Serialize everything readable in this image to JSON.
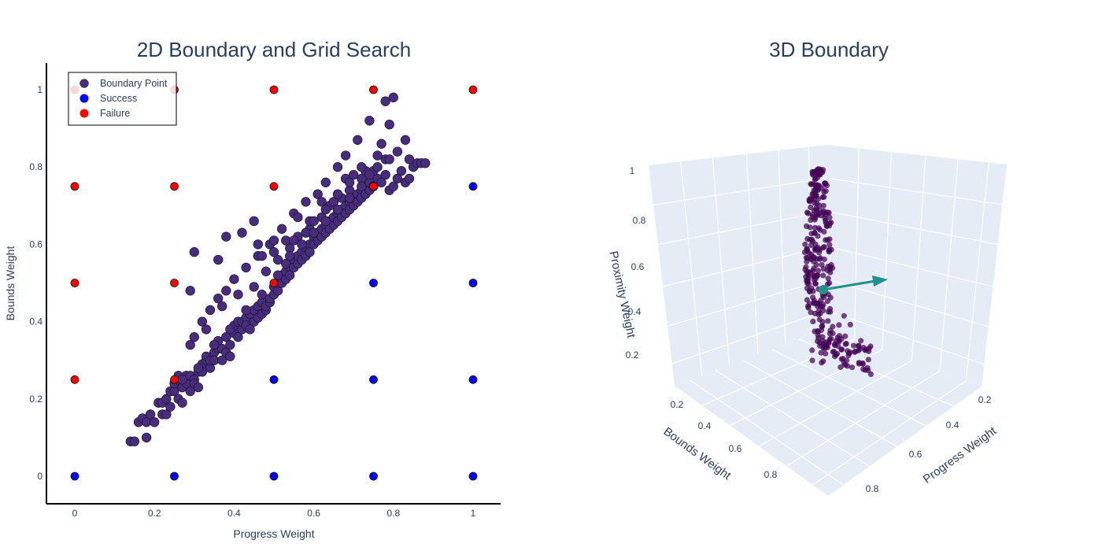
{
  "chart_data": [
    {
      "type": "scatter",
      "title": "2D Boundary and Grid Search",
      "xlabel": "Progress Weight",
      "ylabel": "Bounds Weight",
      "xlim": [
        -0.07,
        1.07
      ],
      "ylim": [
        -0.07,
        1.07
      ],
      "xticks": [
        "0",
        "0.2",
        "0.4",
        "0.6",
        "0.8",
        "1"
      ],
      "yticks": [
        "0",
        "0.2",
        "0.4",
        "0.6",
        "0.8",
        "1"
      ],
      "grid": false,
      "legend_position": "top-left",
      "legend": [
        {
          "name": "Boundary Point",
          "color": "#472d7b"
        },
        {
          "name": "Success",
          "color": "#0000ff"
        },
        {
          "name": "Failure",
          "color": "#ff0000"
        }
      ],
      "series": [
        {
          "name": "Boundary Point",
          "color": "#472d7b",
          "points": [
            [
              0.14,
              0.09
            ],
            [
              0.15,
              0.09
            ],
            [
              0.16,
              0.14
            ],
            [
              0.17,
              0.15
            ],
            [
              0.18,
              0.1
            ],
            [
              0.18,
              0.14
            ],
            [
              0.19,
              0.16
            ],
            [
              0.2,
              0.14
            ],
            [
              0.21,
              0.19
            ],
            [
              0.22,
              0.16
            ],
            [
              0.22,
              0.19
            ],
            [
              0.23,
              0.2
            ],
            [
              0.23,
              0.16
            ],
            [
              0.24,
              0.22
            ],
            [
              0.24,
              0.18
            ],
            [
              0.25,
              0.22
            ],
            [
              0.25,
              0.24
            ],
            [
              0.26,
              0.2
            ],
            [
              0.26,
              0.25
            ],
            [
              0.27,
              0.23
            ],
            [
              0.27,
              0.19
            ],
            [
              0.28,
              0.24
            ],
            [
              0.28,
              0.26
            ],
            [
              0.29,
              0.22
            ],
            [
              0.29,
              0.26
            ],
            [
              0.3,
              0.25
            ],
            [
              0.3,
              0.24
            ],
            [
              0.31,
              0.27
            ],
            [
              0.31,
              0.23
            ],
            [
              0.32,
              0.29
            ],
            [
              0.32,
              0.27
            ],
            [
              0.33,
              0.3
            ],
            [
              0.33,
              0.31
            ],
            [
              0.34,
              0.28
            ],
            [
              0.34,
              0.3
            ],
            [
              0.35,
              0.32
            ],
            [
              0.35,
              0.3
            ],
            [
              0.36,
              0.33
            ],
            [
              0.36,
              0.35
            ],
            [
              0.37,
              0.3
            ],
            [
              0.37,
              0.33
            ],
            [
              0.38,
              0.32
            ],
            [
              0.38,
              0.36
            ],
            [
              0.39,
              0.34
            ],
            [
              0.39,
              0.31
            ],
            [
              0.4,
              0.37
            ],
            [
              0.4,
              0.39
            ],
            [
              0.41,
              0.36
            ],
            [
              0.41,
              0.4
            ],
            [
              0.42,
              0.38
            ],
            [
              0.42,
              0.4
            ],
            [
              0.43,
              0.41
            ],
            [
              0.43,
              0.39
            ],
            [
              0.44,
              0.42
            ],
            [
              0.44,
              0.38
            ],
            [
              0.45,
              0.4
            ],
            [
              0.45,
              0.43
            ],
            [
              0.46,
              0.41
            ],
            [
              0.46,
              0.44
            ],
            [
              0.47,
              0.42
            ],
            [
              0.47,
              0.45
            ],
            [
              0.48,
              0.43
            ],
            [
              0.48,
              0.44
            ],
            [
              0.49,
              0.45
            ],
            [
              0.49,
              0.46
            ],
            [
              0.5,
              0.47
            ],
            [
              0.5,
              0.49
            ],
            [
              0.51,
              0.48
            ],
            [
              0.51,
              0.5
            ],
            [
              0.52,
              0.5
            ],
            [
              0.52,
              0.52
            ],
            [
              0.53,
              0.51
            ],
            [
              0.53,
              0.53
            ],
            [
              0.54,
              0.54
            ],
            [
              0.54,
              0.52
            ],
            [
              0.55,
              0.56
            ],
            [
              0.55,
              0.54
            ],
            [
              0.56,
              0.55
            ],
            [
              0.56,
              0.57
            ],
            [
              0.57,
              0.58
            ],
            [
              0.57,
              0.56
            ],
            [
              0.58,
              0.59
            ],
            [
              0.58,
              0.57
            ],
            [
              0.59,
              0.6
            ],
            [
              0.59,
              0.58
            ],
            [
              0.6,
              0.62
            ],
            [
              0.6,
              0.6
            ],
            [
              0.61,
              0.61
            ],
            [
              0.61,
              0.63
            ],
            [
              0.62,
              0.62
            ],
            [
              0.62,
              0.64
            ],
            [
              0.63,
              0.65
            ],
            [
              0.63,
              0.63
            ],
            [
              0.64,
              0.66
            ],
            [
              0.64,
              0.64
            ],
            [
              0.65,
              0.65
            ],
            [
              0.65,
              0.67
            ],
            [
              0.66,
              0.68
            ],
            [
              0.66,
              0.66
            ],
            [
              0.67,
              0.69
            ],
            [
              0.67,
              0.67
            ],
            [
              0.68,
              0.7
            ],
            [
              0.68,
              0.68
            ],
            [
              0.69,
              0.71
            ],
            [
              0.69,
              0.69
            ],
            [
              0.7,
              0.7
            ],
            [
              0.7,
              0.72
            ],
            [
              0.71,
              0.73
            ],
            [
              0.71,
              0.71
            ],
            [
              0.72,
              0.74
            ],
            [
              0.72,
              0.72
            ],
            [
              0.73,
              0.75
            ],
            [
              0.73,
              0.73
            ],
            [
              0.74,
              0.74
            ],
            [
              0.74,
              0.76
            ],
            [
              0.75,
              0.75
            ],
            [
              0.76,
              0.77
            ],
            [
              0.77,
              0.76
            ],
            [
              0.78,
              0.78
            ],
            [
              0.79,
              0.74
            ],
            [
              0.8,
              0.75
            ],
            [
              0.81,
              0.77
            ],
            [
              0.82,
              0.79
            ],
            [
              0.83,
              0.76
            ],
            [
              0.84,
              0.77
            ],
            [
              0.85,
              0.8
            ],
            [
              0.86,
              0.81
            ],
            [
              0.87,
              0.81
            ],
            [
              0.88,
              0.81
            ],
            [
              0.84,
              0.82
            ],
            [
              0.83,
              0.87
            ],
            [
              0.79,
              0.91
            ],
            [
              0.78,
              0.82
            ],
            [
              0.77,
              0.86
            ],
            [
              0.76,
              0.83
            ],
            [
              0.8,
              0.98
            ],
            [
              0.78,
              0.97
            ],
            [
              0.74,
              0.92
            ],
            [
              0.71,
              0.87
            ],
            [
              0.68,
              0.83
            ],
            [
              0.66,
              0.8
            ],
            [
              0.63,
              0.76
            ],
            [
              0.61,
              0.73
            ],
            [
              0.58,
              0.71
            ],
            [
              0.55,
              0.68
            ],
            [
              0.52,
              0.64
            ],
            [
              0.49,
              0.6
            ],
            [
              0.46,
              0.57
            ],
            [
              0.43,
              0.54
            ],
            [
              0.4,
              0.51
            ],
            [
              0.38,
              0.48
            ],
            [
              0.36,
              0.46
            ],
            [
              0.34,
              0.43
            ],
            [
              0.32,
              0.4
            ],
            [
              0.3,
              0.36
            ],
            [
              0.29,
              0.34
            ],
            [
              0.33,
              0.38
            ],
            [
              0.37,
              0.44
            ],
            [
              0.41,
              0.47
            ],
            [
              0.45,
              0.49
            ],
            [
              0.48,
              0.53
            ],
            [
              0.51,
              0.56
            ],
            [
              0.54,
              0.59
            ],
            [
              0.56,
              0.62
            ],
            [
              0.59,
              0.64
            ],
            [
              0.62,
              0.67
            ],
            [
              0.64,
              0.7
            ],
            [
              0.67,
              0.72
            ],
            [
              0.69,
              0.74
            ],
            [
              0.72,
              0.77
            ],
            [
              0.75,
              0.79
            ],
            [
              0.29,
              0.48
            ],
            [
              0.3,
              0.58
            ],
            [
              0.36,
              0.56
            ],
            [
              0.38,
              0.62
            ],
            [
              0.42,
              0.63
            ],
            [
              0.45,
              0.66
            ],
            [
              0.46,
              0.6
            ],
            [
              0.5,
              0.58
            ],
            [
              0.53,
              0.61
            ],
            [
              0.56,
              0.67
            ],
            [
              0.59,
              0.66
            ],
            [
              0.62,
              0.71
            ],
            [
              0.65,
              0.71
            ],
            [
              0.68,
              0.77
            ],
            [
              0.7,
              0.78
            ],
            [
              0.73,
              0.79
            ],
            [
              0.76,
              0.8
            ],
            [
              0.79,
              0.82
            ],
            [
              0.81,
              0.84
            ],
            [
              0.47,
              0.57
            ],
            [
              0.5,
              0.61
            ],
            [
              0.53,
              0.55
            ],
            [
              0.55,
              0.61
            ],
            [
              0.58,
              0.63
            ],
            [
              0.6,
              0.66
            ],
            [
              0.63,
              0.69
            ],
            [
              0.66,
              0.73
            ],
            [
              0.69,
              0.76
            ],
            [
              0.72,
              0.8
            ],
            [
              0.26,
              0.26
            ],
            [
              0.27,
              0.25
            ],
            [
              0.31,
              0.28
            ],
            [
              0.35,
              0.34
            ],
            [
              0.39,
              0.38
            ],
            [
              0.43,
              0.43
            ],
            [
              0.47,
              0.47
            ],
            [
              0.51,
              0.52
            ],
            [
              0.54,
              0.57
            ],
            [
              0.57,
              0.6
            ],
            [
              0.6,
              0.63
            ],
            [
              0.63,
              0.66
            ],
            [
              0.66,
              0.69
            ],
            [
              0.69,
              0.72
            ],
            [
              0.72,
              0.75
            ],
            [
              0.74,
              0.78
            ]
          ]
        },
        {
          "name": "Success",
          "color": "#0000ff",
          "points": [
            [
              0,
              0
            ],
            [
              0.25,
              0
            ],
            [
              0.5,
              0
            ],
            [
              0.75,
              0
            ],
            [
              1,
              0
            ],
            [
              0.5,
              0.25
            ],
            [
              0.75,
              0.25
            ],
            [
              1,
              0.25
            ],
            [
              0.75,
              0.5
            ],
            [
              1,
              0.5
            ],
            [
              1,
              0.75
            ]
          ]
        },
        {
          "name": "Failure",
          "color": "#ff0000",
          "points": [
            [
              0,
              0.25
            ],
            [
              0.25,
              0.25
            ],
            [
              0,
              0.5
            ],
            [
              0.25,
              0.5
            ],
            [
              0.5,
              0.5
            ],
            [
              0,
              0.75
            ],
            [
              0.25,
              0.75
            ],
            [
              0.5,
              0.75
            ],
            [
              0.75,
              0.75
            ],
            [
              0,
              1
            ],
            [
              0.25,
              1
            ],
            [
              0.5,
              1
            ],
            [
              0.75,
              1
            ],
            [
              1,
              1
            ]
          ]
        }
      ]
    },
    {
      "type": "scatter",
      "title": "3D Boundary",
      "xlabel": "Progress Weight",
      "ylabel": "Bounds Weight",
      "zlabel": "Proximity Weight",
      "x_ticks": [
        "0.2",
        "0.4",
        "0.6",
        "0.8"
      ],
      "y_ticks": [
        "0.2",
        "0.4",
        "0.6",
        "0.8"
      ],
      "z_ticks": [
        "0.2",
        "0.4",
        "0.6",
        "0.8",
        "1"
      ],
      "grid": true,
      "point_color": "#440154",
      "arrow_color": "#21918c",
      "note": "3D scatter of boundary points with a normal-direction arrow"
    }
  ]
}
